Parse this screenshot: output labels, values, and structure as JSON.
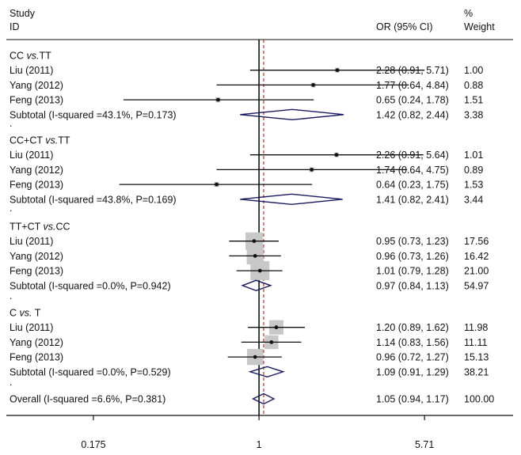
{
  "header": {
    "study_line1": "Study",
    "study_line2": "ID",
    "or_label": "OR (95% CI)",
    "weight_line1": "%",
    "weight_line2": "Weight"
  },
  "chart_data": {
    "type": "forest",
    "title": "",
    "xlabel": "",
    "ylabel": "",
    "x_scale": "log",
    "xlim": [
      0.07,
      14.5
    ],
    "null_line": 1,
    "overall_line": 1.05,
    "xticks": [
      {
        "value": 0.175,
        "label": "0.175"
      },
      {
        "value": 1,
        "label": "1"
      },
      {
        "value": 5.71,
        "label": "5.71"
      }
    ],
    "groups": [
      {
        "label": "CC vs.TT",
        "label_main": "CC ",
        "label_italic": "vs.",
        "label_tail": "TT",
        "studies": [
          {
            "name": "Liu (2011)",
            "or": 2.28,
            "lo": 0.91,
            "hi": 5.71,
            "text": "2.28 (0.91, 5.71)",
            "weight": "1.00"
          },
          {
            "name": "Yang (2012)",
            "or": 1.77,
            "lo": 0.64,
            "hi": 4.84,
            "text": "1.77 (0.64, 4.84)",
            "weight": "0.88"
          },
          {
            "name": "Feng (2013)",
            "or": 0.65,
            "lo": 0.24,
            "hi": 1.78,
            "text": "0.65 (0.24, 1.78)",
            "weight": "1.51"
          }
        ],
        "subtotal": {
          "label": "Subtotal  (I-squared =43.1%, P=0.173)",
          "or": 1.42,
          "lo": 0.82,
          "hi": 2.44,
          "text": "1.42 (0.82, 2.44)",
          "weight": "3.38"
        }
      },
      {
        "label": "CC+CT vs.TT",
        "label_main": "CC+CT ",
        "label_italic": "vs.",
        "label_tail": "TT",
        "studies": [
          {
            "name": "Liu (2011)",
            "or": 2.26,
            "lo": 0.91,
            "hi": 5.64,
            "text": "2.26 (0.91, 5.64)",
            "weight": "1.01"
          },
          {
            "name": "Yang (2012)",
            "or": 1.74,
            "lo": 0.64,
            "hi": 4.75,
            "text": "1.74 (0.64, 4.75)",
            "weight": "0.89"
          },
          {
            "name": "Feng (2013)",
            "or": 0.64,
            "lo": 0.23,
            "hi": 1.75,
            "text": "0.64 (0.23, 1.75)",
            "weight": "1.53"
          }
        ],
        "subtotal": {
          "label": "Subtotal  (I-squared =43.8%, P=0.169)",
          "or": 1.41,
          "lo": 0.82,
          "hi": 2.41,
          "text": "1.41 (0.82, 2.41)",
          "weight": "3.44"
        }
      },
      {
        "label": "TT+CT vs.CC",
        "label_main": "TT+CT ",
        "label_italic": "vs.",
        "label_tail": "CC",
        "studies": [
          {
            "name": "Liu (2011)",
            "or": 0.95,
            "lo": 0.73,
            "hi": 1.23,
            "text": "0.95 (0.73, 1.23)",
            "weight": "17.56"
          },
          {
            "name": "Yang (2012)",
            "or": 0.96,
            "lo": 0.73,
            "hi": 1.26,
            "text": "0.96 (0.73, 1.26)",
            "weight": "16.42"
          },
          {
            "name": "Feng (2013)",
            "or": 1.01,
            "lo": 0.79,
            "hi": 1.28,
            "text": "1.01 (0.79, 1.28)",
            "weight": "21.00"
          }
        ],
        "subtotal": {
          "label": "Subtotal  (I-squared =0.0%, P=0.942)",
          "or": 0.97,
          "lo": 0.84,
          "hi": 1.13,
          "text": "0.97 (0.84, 1.13)",
          "weight": "54.97"
        }
      },
      {
        "label": "C vs. T",
        "label_main": "C ",
        "label_italic": "vs.",
        "label_tail": " T",
        "studies": [
          {
            "name": "Liu (2011)",
            "or": 1.2,
            "lo": 0.89,
            "hi": 1.62,
            "text": "1.20 (0.89, 1.62)",
            "weight": "11.98"
          },
          {
            "name": "Yang (2012)",
            "or": 1.14,
            "lo": 0.83,
            "hi": 1.56,
            "text": "1.14 (0.83, 1.56)",
            "weight": "11.11"
          },
          {
            "name": "Feng (2013)",
            "or": 0.96,
            "lo": 0.72,
            "hi": 1.27,
            "text": "0.96 (0.72, 1.27)",
            "weight": "15.13"
          }
        ],
        "subtotal": {
          "label": "Subtotal  (I-squared =0.0%, P=0.529)",
          "or": 1.09,
          "lo": 0.91,
          "hi": 1.29,
          "text": "1.09 (0.91, 1.29)",
          "weight": "38.21"
        }
      }
    ],
    "overall": {
      "label": "Overall  (I-squared =6.6%, P=0.381)",
      "or": 1.05,
      "lo": 0.94,
      "hi": 1.17,
      "text": "1.05 (0.94, 1.17)",
      "weight": "100.00"
    },
    "colors": {
      "ci_line": "#111111",
      "weight_box": "#c8c8c8",
      "diamond": "#1a1a5e",
      "overall_line": "#b03030",
      "axis": "#111111"
    }
  }
}
